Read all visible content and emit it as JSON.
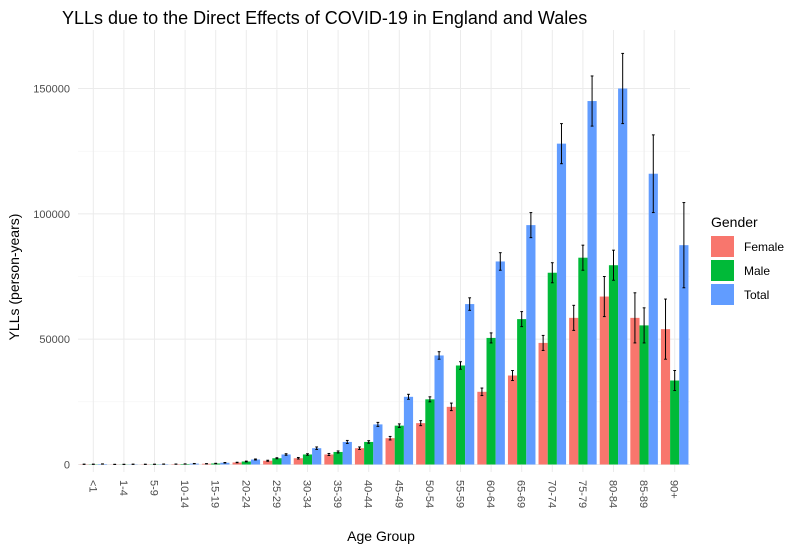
{
  "chart_data": {
    "type": "bar",
    "title": "YLLs due to the Direct Effects of COVID-19 in England and Wales",
    "xlabel": "Age Group",
    "ylabel": "YLLs (person-years)",
    "ylim": [
      0,
      165000
    ],
    "yticks": [
      0,
      50000,
      100000,
      150000
    ],
    "ytick_labels": [
      "0",
      "50000",
      "100000",
      "150000"
    ],
    "grid": true,
    "legend": {
      "title": "Gender",
      "position": "right"
    },
    "categories": [
      "<1",
      "1-4",
      "5-9",
      "10-14",
      "15-19",
      "20-24",
      "25-29",
      "30-34",
      "35-39",
      "40-44",
      "45-49",
      "50-54",
      "55-59",
      "60-64",
      "65-69",
      "70-74",
      "75-79",
      "80-84",
      "85-89",
      "90+"
    ],
    "series": [
      {
        "name": "Female",
        "color": "#F8766D",
        "values": [
          100,
          50,
          80,
          150,
          300,
          800,
          1500,
          2500,
          4000,
          6500,
          10500,
          16500,
          23000,
          29000,
          35500,
          48500,
          58500,
          67000,
          58500,
          54000
        ],
        "error": [
          30,
          20,
          20,
          40,
          60,
          100,
          200,
          300,
          400,
          500,
          700,
          1000,
          1500,
          1500,
          2000,
          3000,
          5000,
          8000,
          10000,
          12000
        ]
      },
      {
        "name": "Male",
        "color": "#00BA38",
        "values": [
          100,
          60,
          90,
          200,
          400,
          1200,
          2500,
          4000,
          5000,
          9000,
          15500,
          26000,
          39500,
          50500,
          58000,
          76500,
          82500,
          79500,
          55500,
          33500
        ],
        "error": [
          30,
          20,
          20,
          50,
          80,
          150,
          200,
          300,
          400,
          500,
          700,
          1000,
          1500,
          2000,
          3000,
          4000,
          5000,
          6000,
          7000,
          4000
        ]
      },
      {
        "name": "Total",
        "color": "#619CFF",
        "values": [
          200,
          100,
          150,
          350,
          700,
          2000,
          4000,
          6500,
          9000,
          16000,
          27000,
          43500,
          64000,
          81000,
          95500,
          128000,
          145000,
          150000,
          116000,
          87500
        ],
        "error": [
          40,
          30,
          30,
          60,
          100,
          200,
          300,
          500,
          600,
          800,
          1000,
          1500,
          2500,
          3500,
          5000,
          8000,
          10000,
          14000,
          15500,
          17000
        ]
      }
    ]
  }
}
